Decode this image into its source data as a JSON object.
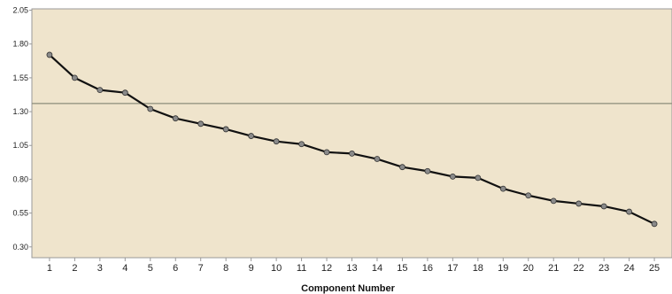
{
  "chart_data": {
    "type": "line",
    "title": "",
    "xlabel": "Component Number",
    "ylabel": "",
    "x": [
      1,
      2,
      3,
      4,
      5,
      6,
      7,
      8,
      9,
      10,
      11,
      12,
      13,
      14,
      15,
      16,
      17,
      18,
      19,
      20,
      21,
      22,
      23,
      24,
      25
    ],
    "series": [
      {
        "values": [
          1.72,
          1.55,
          1.46,
          1.44,
          1.32,
          1.25,
          1.21,
          1.17,
          1.12,
          1.08,
          1.06,
          1.0,
          0.99,
          0.95,
          0.89,
          0.86,
          0.82,
          0.81,
          0.73,
          0.68,
          0.64,
          0.62,
          0.6,
          0.56,
          0.47
        ]
      }
    ],
    "reference_line_y": 1.36,
    "xlim": [
      0.3,
      25.7
    ],
    "ylim": [
      0.22,
      2.06
    ],
    "y_ticks": [
      "0.30",
      "0.55",
      "0.80",
      "1.05",
      "1.30",
      "1.55",
      "1.80",
      "2.05"
    ],
    "x_ticks": [
      "1",
      "2",
      "3",
      "4",
      "5",
      "6",
      "7",
      "8",
      "9",
      "10",
      "11",
      "12",
      "13",
      "14",
      "15",
      "16",
      "17",
      "18",
      "19",
      "20",
      "21",
      "22",
      "23",
      "24",
      "25"
    ],
    "grid": false,
    "legend": "none",
    "colors": {
      "plot_background": "#efe4cc",
      "line": "#111111",
      "marker_fill": "#8a8a8a",
      "marker_stroke": "#333333",
      "reference_line": "#8c8c7a",
      "axis": "#999999"
    }
  }
}
